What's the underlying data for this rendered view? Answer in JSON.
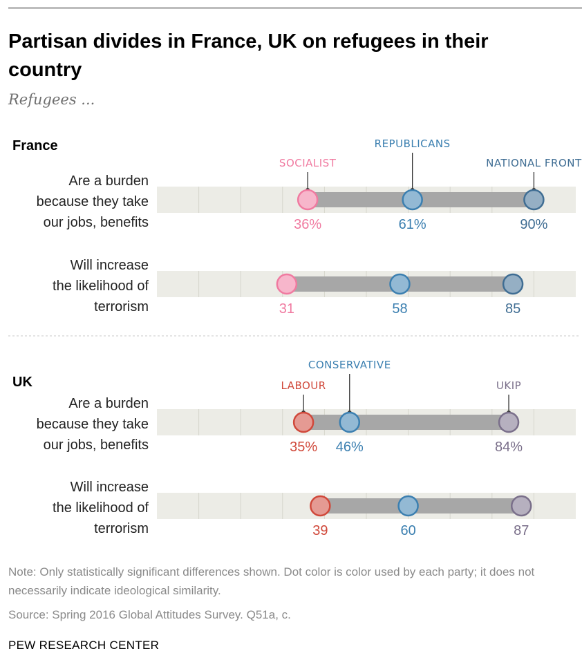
{
  "title": "Partisan divides in France, UK on refugees in their country",
  "subtitle": "Refugees ...",
  "note": "Note: Only statistically significant differences shown. Dot color is color used by each party; it does not necessarily indicate ideological similarity.",
  "source": "Source: Spring 2016 Global Attitudes Survey. Q51a, c.",
  "brand": "PEW RESEARCH CENTER",
  "chart_data": {
    "type": "dot-range",
    "xlim": [
      0,
      100
    ],
    "panels": [
      {
        "country": "France",
        "parties": [
          {
            "name": "SOCIALIST",
            "color": "#f07aa0"
          },
          {
            "name": "REPUBLICANS",
            "color": "#3b7fb0"
          },
          {
            "name": "NATIONAL FRONT",
            "color": "#3f6d93"
          }
        ],
        "rows": [
          {
            "label": [
              "Are a burden",
              "because they take",
              "our jobs, benefits"
            ],
            "values": [
              36,
              61,
              90
            ],
            "labels": [
              "36%",
              "61%",
              "90%"
            ]
          },
          {
            "label": [
              "Will increase",
              "the likelihood of",
              "terrorism"
            ],
            "values": [
              31,
              58,
              85
            ],
            "labels": [
              "31",
              "58",
              "85"
            ]
          }
        ]
      },
      {
        "country": "UK",
        "parties": [
          {
            "name": "LABOUR",
            "color": "#d0483a"
          },
          {
            "name": "CONSERVATIVE",
            "color": "#3b7fb0"
          },
          {
            "name": "UKIP",
            "color": "#7a6f8a"
          }
        ],
        "rows": [
          {
            "label": [
              "Are a burden",
              "because they take",
              "our jobs, benefits"
            ],
            "values": [
              35,
              46,
              84
            ],
            "labels": [
              "35%",
              "46%",
              "84%"
            ]
          },
          {
            "label": [
              "Will increase",
              "the likelihood of",
              "terrorism"
            ],
            "values": [
              39,
              60,
              87
            ],
            "labels": [
              "39",
              "60",
              "87"
            ]
          }
        ]
      }
    ]
  }
}
